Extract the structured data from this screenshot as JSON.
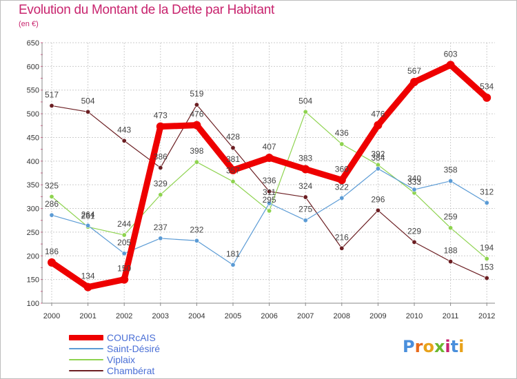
{
  "title": "Evolution du Montant de la Dette par Habitant",
  "unit": "(en €)",
  "logo": "Proxiti",
  "colors": {
    "title": "#c8246e",
    "legend_text": "#4a6fd6",
    "axis_text": "#333333",
    "grid": "#cccccc"
  },
  "chart_data": {
    "type": "line",
    "x": [
      "2000",
      "2001",
      "2002",
      "2003",
      "2004",
      "2005",
      "2006",
      "2007",
      "2008",
      "2009",
      "2010",
      "2011",
      "2012"
    ],
    "ylim": [
      100,
      650
    ],
    "yticks": [
      100,
      150,
      200,
      250,
      300,
      350,
      400,
      450,
      500,
      550,
      600,
      650
    ],
    "grid": true,
    "legend_position": "bottom-left",
    "series": [
      {
        "name": "COURcAIS",
        "color": "#ee0000",
        "values": [
          186,
          134,
          150,
          473,
          476,
          381,
          407,
          383,
          360,
          476,
          567,
          603,
          534
        ]
      },
      {
        "name": "Saint-Désiré",
        "color": "#5b9bd5",
        "values": [
          286,
          264,
          205,
          237,
          232,
          181,
          311,
          275,
          322,
          384,
          340,
          358,
          312
        ]
      },
      {
        "name": "Viplaix",
        "color": "#8ed34f",
        "values": [
          325,
          261,
          244,
          329,
          398,
          357,
          295,
          504,
          436,
          392,
          333,
          259,
          194
        ]
      },
      {
        "name": "Chambérat",
        "color": "#6b1e22",
        "values": [
          517,
          504,
          443,
          386,
          519,
          428,
          336,
          324,
          216,
          296,
          229,
          188,
          153
        ]
      }
    ]
  }
}
